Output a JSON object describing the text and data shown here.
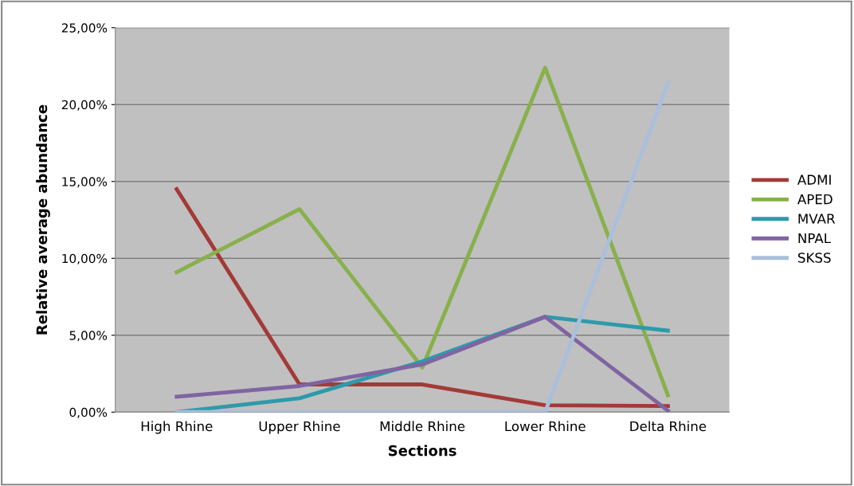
{
  "chart_data": {
    "type": "line",
    "xlabel": "Sections",
    "ylabel": "Relative average abundance",
    "categories": [
      "High Rhine",
      "Upper Rhine",
      "Middle Rhine",
      "Lower Rhine",
      "Delta Rhine"
    ],
    "series": [
      {
        "name": "ADMI",
        "color": "#a33a37",
        "values": [
          14.5,
          1.8,
          1.8,
          0.45,
          0.4
        ]
      },
      {
        "name": "APED",
        "color": "#88b04b",
        "values": [
          9.1,
          13.2,
          2.9,
          22.4,
          1.1
        ]
      },
      {
        "name": "MVAR",
        "color": "#2e9aaa",
        "values": [
          0,
          0.9,
          3.3,
          6.2,
          5.3
        ]
      },
      {
        "name": "NPAL",
        "color": "#8064a2",
        "values": [
          1.0,
          1.7,
          3.1,
          6.2,
          0.1
        ]
      },
      {
        "name": "SKSS",
        "color": "#a9bfdc",
        "values": [
          0,
          0,
          0,
          0,
          21.4
        ]
      }
    ],
    "ylim": [
      0,
      25
    ],
    "yticks": [
      {
        "value": 0,
        "label": "0,00%"
      },
      {
        "value": 5,
        "label": "5,00%"
      },
      {
        "value": 10,
        "label": "10,00%"
      },
      {
        "value": 15,
        "label": "15,00%"
      },
      {
        "value": 20,
        "label": "20,00%"
      },
      {
        "value": 25,
        "label": "25,00%"
      }
    ],
    "grid": "y",
    "legend": "right",
    "marker": "none",
    "line_style": "solid"
  }
}
